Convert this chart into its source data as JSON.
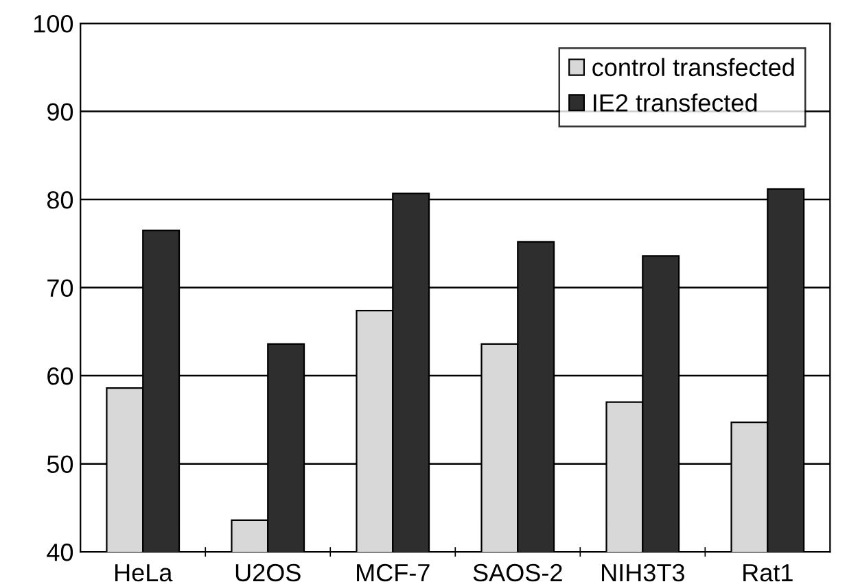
{
  "chart_data": {
    "type": "bar",
    "categories": [
      "HeLa",
      "U2OS",
      "MCF-7",
      "SAOS-2",
      "NIH3T3",
      "Rat1"
    ],
    "series": [
      {
        "name": "control transfected",
        "color": "#d8d8d8",
        "values": [
          58.6,
          43.6,
          67.4,
          63.6,
          57.0,
          54.7
        ]
      },
      {
        "name": "IE2 transfected",
        "color": "#2e2e2e",
        "values": [
          76.5,
          63.6,
          80.7,
          75.2,
          73.6,
          81.2
        ]
      }
    ],
    "ylim": [
      40,
      100
    ],
    "yticks": [
      40,
      50,
      60,
      70,
      80,
      90,
      100
    ],
    "grid": "y",
    "legend": "top right"
  }
}
